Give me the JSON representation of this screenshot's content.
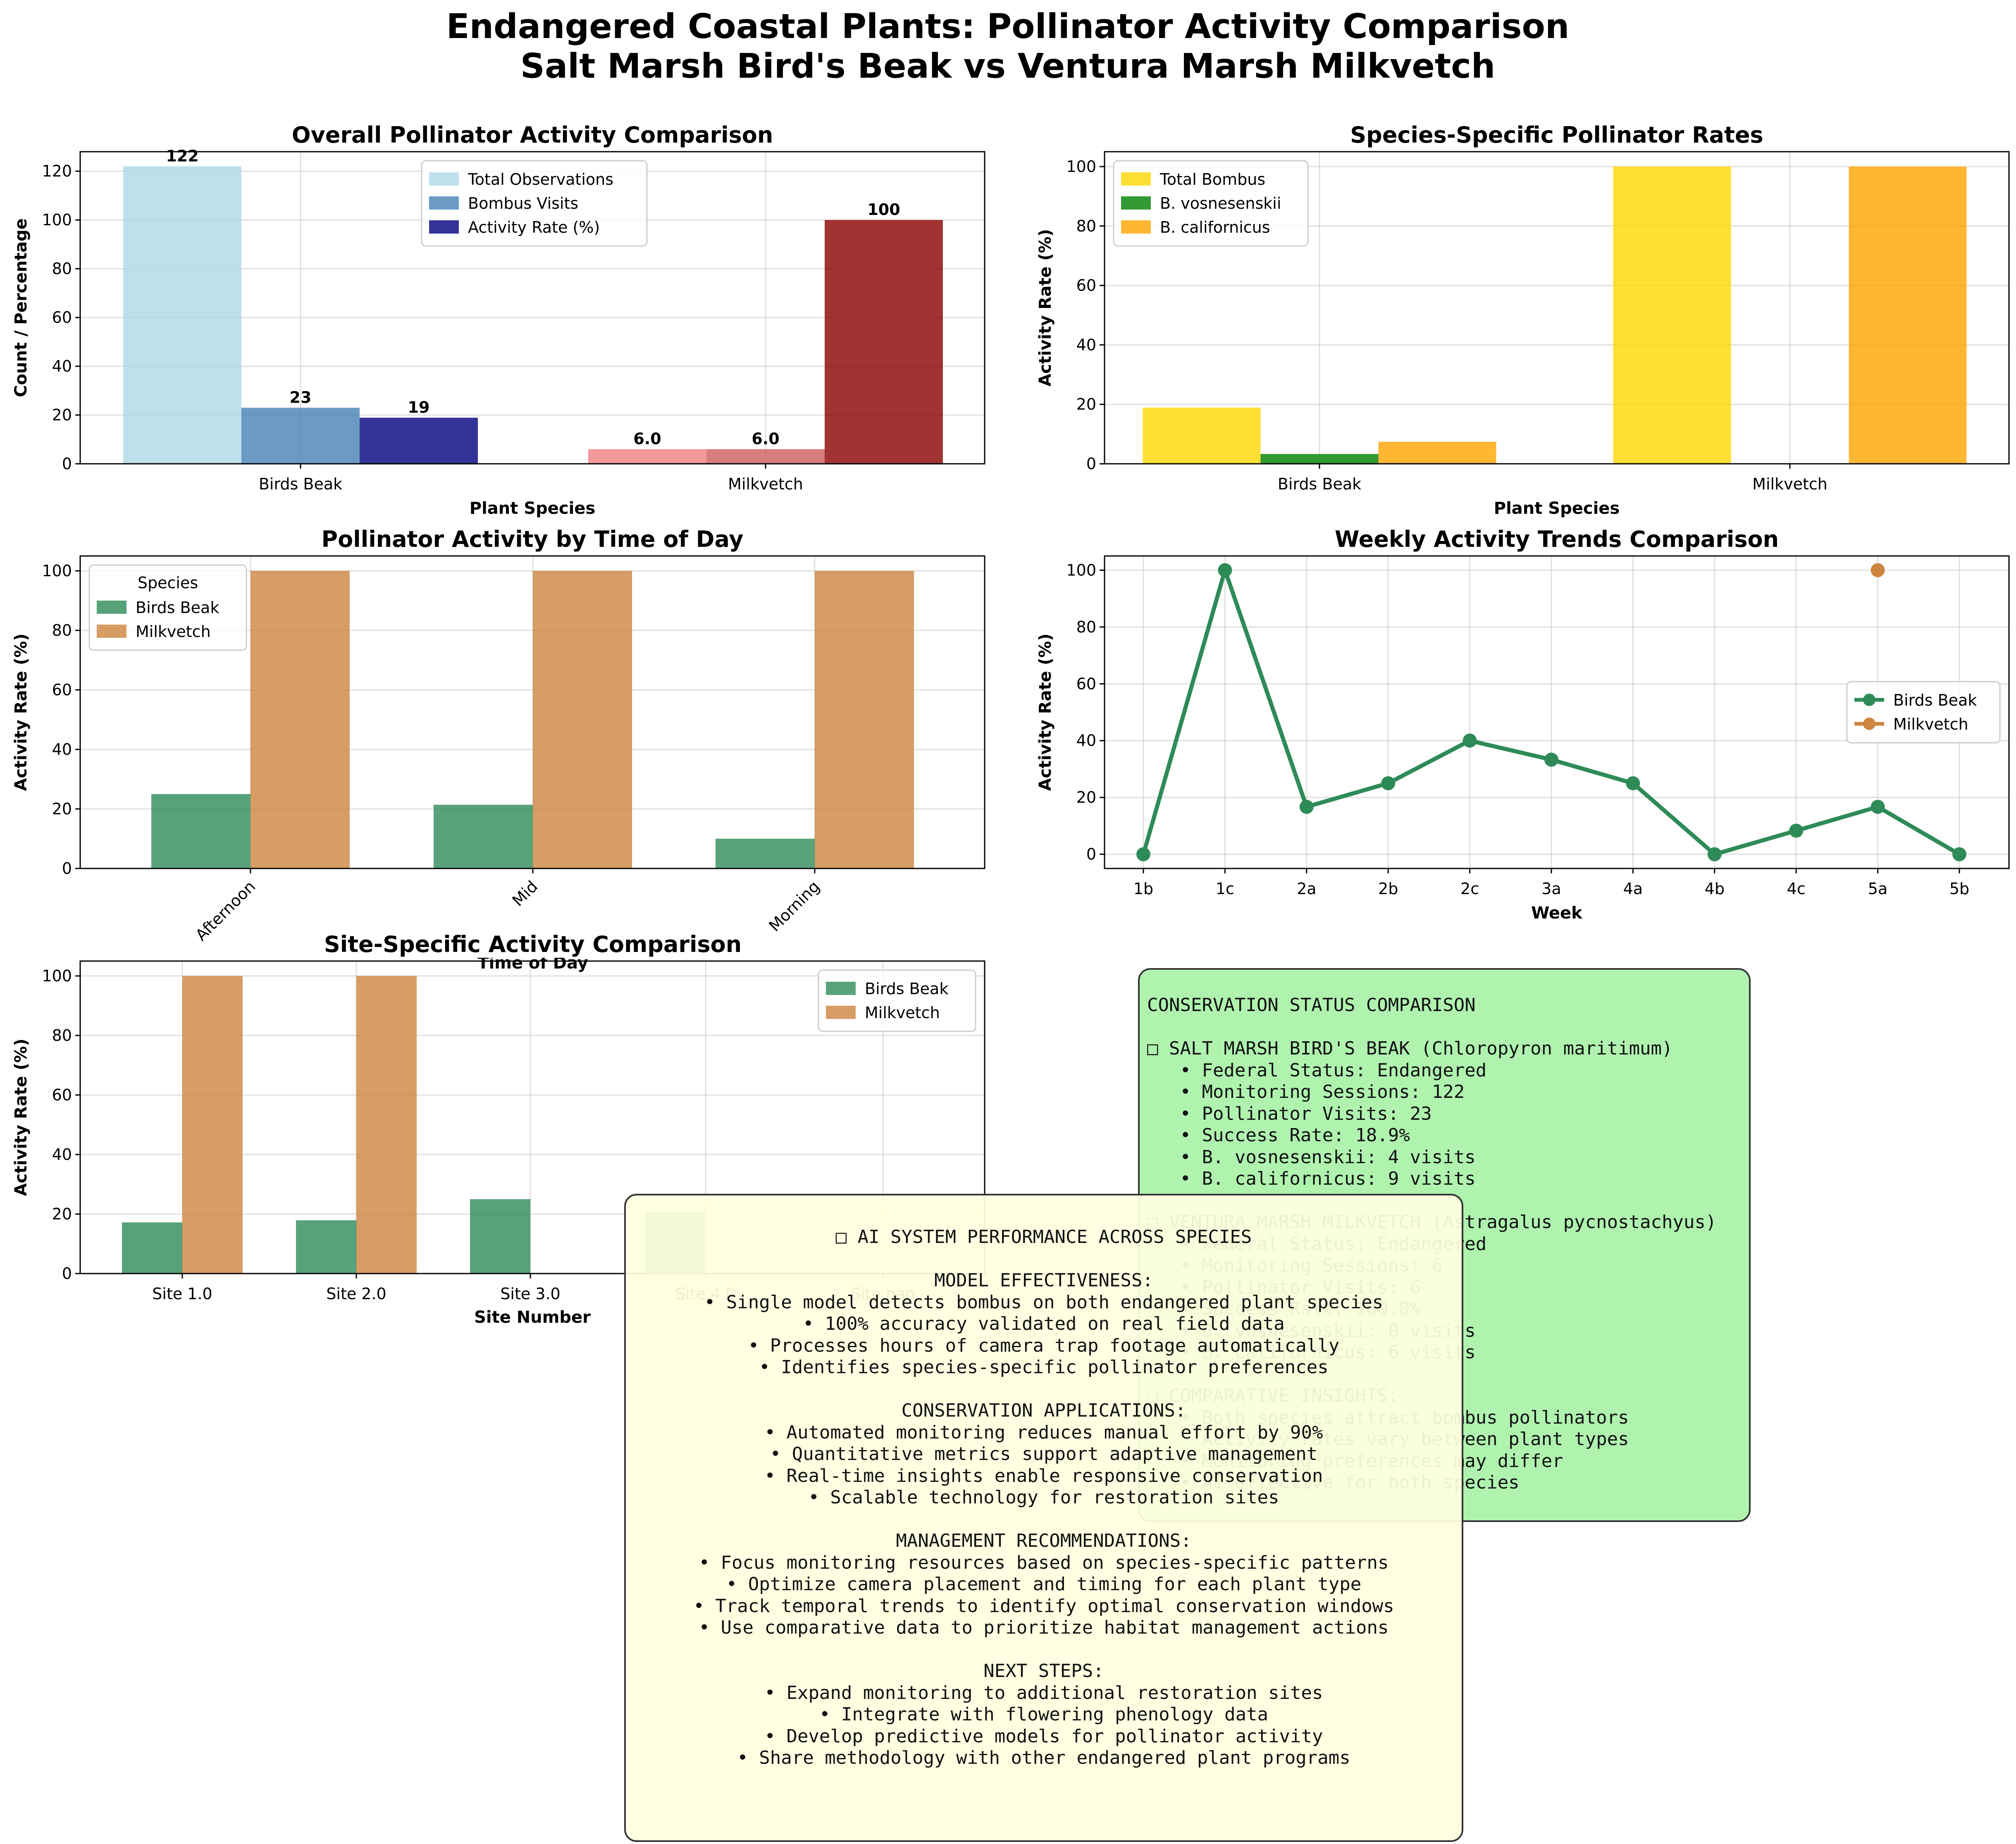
{
  "suptitle": [
    "Endangered Coastal Plants: Pollinator Activity Comparison",
    "Salt Marsh Bird's Beak vs Ventura Marsh Milkvetch"
  ],
  "colors": {
    "light_blue": "#add8e6",
    "steel_blue": "#4682b4",
    "navy": "#000080",
    "light_coral": "#f08080",
    "indian_red": "#cd5c5c",
    "dark_red": "#8b0000",
    "gold": "#ffd700",
    "green": "#008000",
    "orange": "#ffa500",
    "sea_green": "#2e8b57",
    "peru": "#cd853f"
  },
  "chart_data": [
    {
      "id": "overall",
      "type": "bar",
      "title": "Overall Pollinator Activity Comparison",
      "xlabel": "Plant Species",
      "ylabel": "Count / Percentage",
      "categories": [
        "Birds Beak",
        "Milkvetch"
      ],
      "yticks": [
        "0",
        "20",
        "40",
        "60",
        "80",
        "100",
        "120"
      ],
      "ylim": [
        0,
        128
      ],
      "series": [
        {
          "name": "Total Observations",
          "values": [
            122,
            6.0
          ],
          "labels": [
            "122",
            "6.0"
          ]
        },
        {
          "name": "Bombus Visits",
          "values": [
            23,
            6.0
          ],
          "labels": [
            "23",
            "6.0"
          ]
        },
        {
          "name": "Activity Rate (%)",
          "values": [
            18.9,
            100
          ],
          "labels": [
            "19",
            "100"
          ]
        }
      ],
      "legend": "upper center",
      "grid": true
    },
    {
      "id": "species",
      "type": "bar",
      "title": "Species-Specific Pollinator Rates",
      "xlabel": "Plant Species",
      "ylabel": "Activity Rate (%)",
      "categories": [
        "Birds Beak",
        "Milkvetch"
      ],
      "yticks": [
        "0",
        "20",
        "40",
        "60",
        "80",
        "100"
      ],
      "ylim": [
        0,
        105
      ],
      "series": [
        {
          "name": "Total Bombus",
          "values": [
            18.9,
            100
          ]
        },
        {
          "name": "B. vosnesenskii",
          "values": [
            3.3,
            0
          ]
        },
        {
          "name": "B. californicus",
          "values": [
            7.4,
            100
          ]
        }
      ],
      "legend": "upper left",
      "grid": true
    },
    {
      "id": "timeofday",
      "type": "bar",
      "title": "Pollinator Activity by Time of Day",
      "xlabel": "Time of Day",
      "ylabel": "Activity Rate (%)",
      "categories": [
        "Afternoon",
        "Mid",
        "Morning"
      ],
      "yticks": [
        "0",
        "20",
        "40",
        "60",
        "80",
        "100"
      ],
      "ylim": [
        0,
        105
      ],
      "legend_title": "Species",
      "series": [
        {
          "name": "Birds Beak",
          "values": [
            25,
            21.4,
            10
          ]
        },
        {
          "name": "Milkvetch",
          "values": [
            100,
            100,
            100
          ]
        }
      ],
      "legend": "upper left",
      "grid": true
    },
    {
      "id": "weekly",
      "type": "line",
      "title": "Weekly Activity Trends Comparison",
      "xlabel": "Week",
      "ylabel": "Activity Rate (%)",
      "x": [
        "1b",
        "1c",
        "2a",
        "2b",
        "2c",
        "3a",
        "4a",
        "4b",
        "4c",
        "5a",
        "5b"
      ],
      "yticks": [
        "0",
        "20",
        "40",
        "60",
        "80",
        "100"
      ],
      "ylim": [
        -5,
        105
      ],
      "series": [
        {
          "name": "Birds Beak",
          "values": [
            0,
            100,
            16.7,
            25,
            40,
            33.3,
            25,
            0,
            8.3,
            16.7,
            0
          ]
        },
        {
          "name": "Milkvetch",
          "values": [
            null,
            null,
            null,
            null,
            null,
            null,
            null,
            null,
            null,
            100,
            null
          ]
        }
      ],
      "legend": "center right",
      "grid": true
    },
    {
      "id": "site",
      "type": "bar",
      "title": "Site-Specific Activity Comparison",
      "xlabel": "Site Number",
      "ylabel": "Activity Rate (%)",
      "categories": [
        "Site 1.0",
        "Site 2.0",
        "Site 3.0",
        "Site 4.0",
        "Site nan"
      ],
      "yticks": [
        "0",
        "20",
        "40",
        "60",
        "80",
        "100"
      ],
      "ylim": [
        0,
        105
      ],
      "series": [
        {
          "name": "Birds Beak",
          "values": [
            17.2,
            17.9,
            25,
            20.8,
            0
          ]
        },
        {
          "name": "Milkvetch",
          "values": [
            100,
            100,
            0,
            0,
            0
          ]
        }
      ],
      "legend": "upper right",
      "grid": true
    }
  ],
  "conservation_box": [
    "CONSERVATION STATUS COMPARISON",
    "",
    "□ SALT MARSH BIRD'S BEAK (Chloropyron maritimum)",
    "   • Federal Status: Endangered",
    "   • Monitoring Sessions: 122",
    "   • Pollinator Visits: 23",
    "   • Success Rate: 18.9%",
    "   • B. vosnesenskii: 4 visits",
    "   • B. californicus: 9 visits",
    "",
    "□ VENTURA MARSH MILKVETCH (Astragalus pycnostachyus)",
    "   • Federal Status: Endangered",
    "   • Monitoring Sessions: 6",
    "   • Pollinator Visits: 6",
    "   • Success Rate: 100.0%",
    "   • B. vosnesenskii: 0 visits",
    "   • B. californicus: 6 visits",
    "",
    "□ COMPARATIVE INSIGHTS:",
    "   • Both species attract bombus pollinators",
    "   • Activity rates vary between plant types",
    "   • Monitoring preferences may differ",
    "   • AI effective for both species"
  ],
  "ai_box": [
    "□ AI SYSTEM PERFORMANCE ACROSS SPECIES",
    "",
    "MODEL EFFECTIVENESS:",
    "• Single model detects bombus on both endangered plant species",
    "• 100% accuracy validated on real field data",
    "• Processes hours of camera trap footage automatically",
    "• Identifies species-specific pollinator preferences",
    "",
    "CONSERVATION APPLICATIONS:",
    "• Automated monitoring reduces manual effort by 90%",
    "• Quantitative metrics support adaptive management",
    "• Real-time insights enable responsive conservation",
    "• Scalable technology for restoration sites",
    "",
    "MANAGEMENT RECOMMENDATIONS:",
    "• Focus monitoring resources based on species-specific patterns",
    "• Optimize camera placement and timing for each plant type",
    "• Track temporal trends to identify optimal conservation windows",
    "• Use comparative data to prioritize habitat management actions",
    "",
    "NEXT STEPS:",
    "• Expand monitoring to additional restoration sites",
    "• Integrate with flowering phenology data",
    "• Develop predictive models for pollinator activity",
    "• Share methodology with other endangered plant programs"
  ]
}
